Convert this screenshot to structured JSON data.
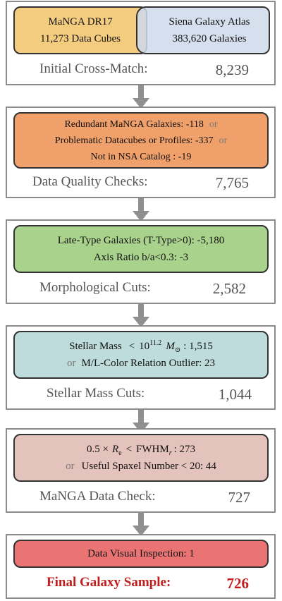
{
  "colors": {
    "manga": "#f3cc80",
    "siena": "#cfd9ea",
    "quality": "#f0a06a",
    "morph": "#a9d28c",
    "mass": "#bfdcdc",
    "check": "#e5c3bd",
    "visual": "#ea7373",
    "final_text": "#c21d1d",
    "frame": "#8c8c8c",
    "arrow": "#8f8f8f"
  },
  "step1": {
    "manga_title": "MaNGA DR17",
    "manga_count": "11,273 Data Cubes",
    "siena_title": "Siena Galaxy Atlas",
    "siena_count": "383,620 Galaxies",
    "label": "Initial Cross-Match:",
    "value": "8,239"
  },
  "step2": {
    "line1": "Redundant MaNGA Galaxies: -118",
    "line2": "Problematic Datacubes or Profiles: -337",
    "line3": "Not in NSA Catalog : -19",
    "or": "or",
    "label": "Data Quality Checks:",
    "value": "7,765"
  },
  "step3": {
    "line1": "Late-Type Galaxies (T-Type>0): -5,180",
    "line2": "Axis Ratio b/a<0.3: -3",
    "label": "Morphological Cuts:",
    "value": "2,582"
  },
  "step4": {
    "line1_prefix": "Stellar Mass",
    "line1_lt": "<",
    "line1_base": "10",
    "line1_exp": "11.2",
    "line1_unit": "M",
    "line1_unit_sub": "⊙",
    "line1_value": ": 1,515",
    "or": "or",
    "line2": "M/L-Color Relation Outlier: 23",
    "label": "Stellar Mass Cuts:",
    "value": "1,044"
  },
  "step5": {
    "line1_coef": "0.5 ×",
    "line1_r": "R",
    "line1_r_sub": "e",
    "line1_lt": "<",
    "line1_fwhm": "FWHM",
    "line1_fwhm_sub": "r",
    "line1_value": ": 273",
    "or": "or",
    "line2": "Useful Spaxel Number < 20: 44",
    "label": "MaNGA Data Check:",
    "value": "727"
  },
  "step6": {
    "line1": "Data Visual Inspection: 1",
    "label": "Final Galaxy Sample:",
    "value": "726"
  }
}
